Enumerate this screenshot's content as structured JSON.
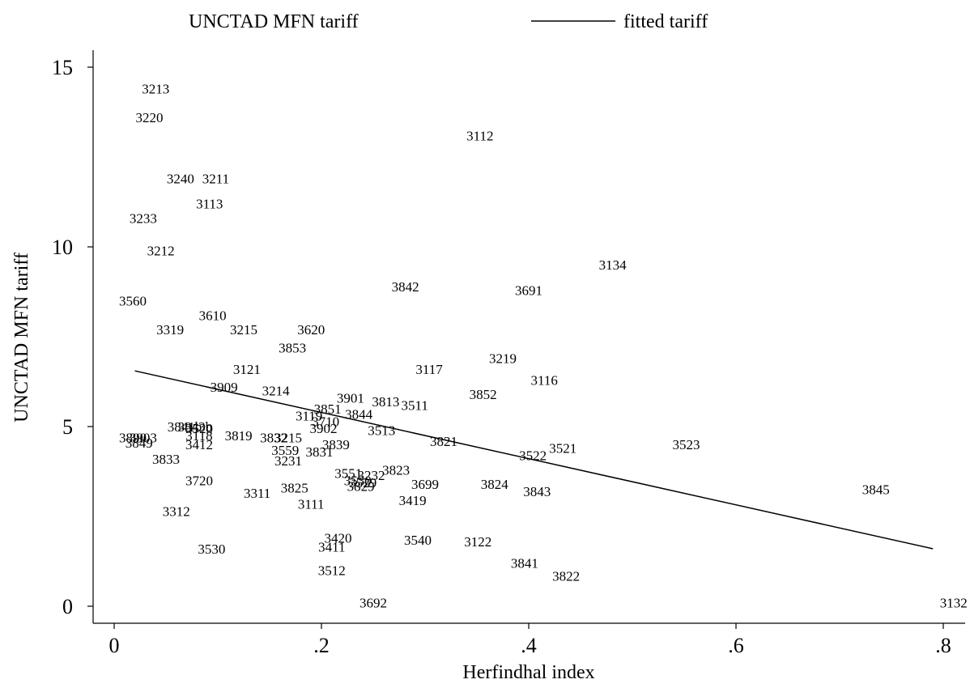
{
  "chart_data": {
    "type": "scatter",
    "xlabel": "Herfindhal index",
    "ylabel": "UNCTAD MFN tariff",
    "xlim": [
      0,
      0.82
    ],
    "ylim": [
      -0.5,
      15.5
    ],
    "xticks": [
      0,
      0.2,
      0.4,
      0.6,
      0.8
    ],
    "xtick_labels": [
      "0",
      ".2",
      ".4",
      ".6",
      ".8"
    ],
    "yticks": [
      0,
      5,
      10,
      15
    ],
    "ytick_labels": [
      "0",
      "5",
      "10",
      "15"
    ],
    "grid": false,
    "legend_position": "top",
    "series": [
      {
        "name": "UNCTAD MFN tariff",
        "kind": "labeled-points",
        "points": [
          {
            "label": "3213",
            "x": 0.04,
            "y": 14.4
          },
          {
            "label": "3220",
            "x": 0.034,
            "y": 13.6
          },
          {
            "label": "3112",
            "x": 0.353,
            "y": 13.1
          },
          {
            "label": "3240",
            "x": 0.064,
            "y": 11.9
          },
          {
            "label": "3211",
            "x": 0.098,
            "y": 11.9
          },
          {
            "label": "3113",
            "x": 0.092,
            "y": 11.2
          },
          {
            "label": "3233",
            "x": 0.028,
            "y": 10.8
          },
          {
            "label": "3212",
            "x": 0.045,
            "y": 9.9
          },
          {
            "label": "3134",
            "x": 0.481,
            "y": 9.5
          },
          {
            "label": "3842",
            "x": 0.281,
            "y": 8.9
          },
          {
            "label": "3691",
            "x": 0.4,
            "y": 8.8
          },
          {
            "label": "3560",
            "x": 0.018,
            "y": 8.5
          },
          {
            "label": "3610",
            "x": 0.095,
            "y": 8.1
          },
          {
            "label": "3319",
            "x": 0.054,
            "y": 7.7
          },
          {
            "label": "3215",
            "x": 0.125,
            "y": 7.7
          },
          {
            "label": "3620",
            "x": 0.19,
            "y": 7.7
          },
          {
            "label": "3853",
            "x": 0.172,
            "y": 7.2
          },
          {
            "label": "3219",
            "x": 0.375,
            "y": 6.9
          },
          {
            "label": "3121",
            "x": 0.128,
            "y": 6.6
          },
          {
            "label": "3117",
            "x": 0.304,
            "y": 6.6
          },
          {
            "label": "3116",
            "x": 0.415,
            "y": 6.3
          },
          {
            "label": "3909",
            "x": 0.106,
            "y": 6.1
          },
          {
            "label": "3214",
            "x": 0.156,
            "y": 6.0
          },
          {
            "label": "3852",
            "x": 0.356,
            "y": 5.9
          },
          {
            "label": "3901",
            "x": 0.228,
            "y": 5.8
          },
          {
            "label": "3813",
            "x": 0.262,
            "y": 5.7
          },
          {
            "label": "3511",
            "x": 0.29,
            "y": 5.6
          },
          {
            "label": "3851",
            "x": 0.206,
            "y": 5.5
          },
          {
            "label": "3844",
            "x": 0.236,
            "y": 5.35
          },
          {
            "label": "3119",
            "x": 0.188,
            "y": 5.3
          },
          {
            "label": "3710",
            "x": 0.204,
            "y": 5.15
          },
          {
            "label": "3841b",
            "x": 0.068,
            "y": 5.0
          },
          {
            "label": "3843b",
            "x": 0.078,
            "y": 5.0
          },
          {
            "label": "3520",
            "x": 0.082,
            "y": 4.95
          },
          {
            "label": "3902",
            "x": 0.202,
            "y": 4.95
          },
          {
            "label": "3513",
            "x": 0.258,
            "y": 4.9
          },
          {
            "label": "3118",
            "x": 0.082,
            "y": 4.75
          },
          {
            "label": "3819",
            "x": 0.12,
            "y": 4.75
          },
          {
            "label": "3832",
            "x": 0.154,
            "y": 4.7
          },
          {
            "label": "3215",
            "x": 0.168,
            "y": 4.7
          },
          {
            "label": "3890",
            "x": 0.018,
            "y": 4.7
          },
          {
            "label": "3903",
            "x": 0.028,
            "y": 4.7
          },
          {
            "label": "3821",
            "x": 0.318,
            "y": 4.6
          },
          {
            "label": "3849",
            "x": 0.024,
            "y": 4.55
          },
          {
            "label": "3412",
            "x": 0.082,
            "y": 4.5
          },
          {
            "label": "3839",
            "x": 0.214,
            "y": 4.5
          },
          {
            "label": "3523",
            "x": 0.552,
            "y": 4.5
          },
          {
            "label": "3521",
            "x": 0.433,
            "y": 4.4
          },
          {
            "label": "3559",
            "x": 0.165,
            "y": 4.35
          },
          {
            "label": "3831",
            "x": 0.198,
            "y": 4.3
          },
          {
            "label": "3522",
            "x": 0.404,
            "y": 4.2
          },
          {
            "label": "3833",
            "x": 0.05,
            "y": 4.1
          },
          {
            "label": "3231",
            "x": 0.168,
            "y": 4.05
          },
          {
            "label": "3823",
            "x": 0.272,
            "y": 3.8
          },
          {
            "label": "3551",
            "x": 0.226,
            "y": 3.7
          },
          {
            "label": "3232",
            "x": 0.248,
            "y": 3.65
          },
          {
            "label": "3530",
            "x": 0.235,
            "y": 3.5
          },
          {
            "label": "3529",
            "x": 0.24,
            "y": 3.45
          },
          {
            "label": "3720",
            "x": 0.082,
            "y": 3.5
          },
          {
            "label": "3699",
            "x": 0.3,
            "y": 3.4
          },
          {
            "label": "3824",
            "x": 0.367,
            "y": 3.4
          },
          {
            "label": "3829",
            "x": 0.238,
            "y": 3.35
          },
          {
            "label": "3825",
            "x": 0.174,
            "y": 3.3
          },
          {
            "label": "3843",
            "x": 0.408,
            "y": 3.2
          },
          {
            "label": "3845",
            "x": 0.735,
            "y": 3.25
          },
          {
            "label": "3311",
            "x": 0.138,
            "y": 3.15
          },
          {
            "label": "3419",
            "x": 0.288,
            "y": 2.95
          },
          {
            "label": "3111",
            "x": 0.19,
            "y": 2.85
          },
          {
            "label": "3312",
            "x": 0.06,
            "y": 2.65
          },
          {
            "label": "3420",
            "x": 0.216,
            "y": 1.9
          },
          {
            "label": "3540",
            "x": 0.293,
            "y": 1.85
          },
          {
            "label": "3122",
            "x": 0.351,
            "y": 1.8
          },
          {
            "label": "3411",
            "x": 0.21,
            "y": 1.65
          },
          {
            "label": "3530",
            "x": 0.094,
            "y": 1.6
          },
          {
            "label": "3841",
            "x": 0.396,
            "y": 1.2
          },
          {
            "label": "3512",
            "x": 0.21,
            "y": 1.0
          },
          {
            "label": "3822",
            "x": 0.436,
            "y": 0.85
          },
          {
            "label": "3692",
            "x": 0.25,
            "y": 0.1
          },
          {
            "label": "3132",
            "x": 0.81,
            "y": 0.1
          }
        ]
      },
      {
        "name": "fitted tariff",
        "kind": "line",
        "x": [
          0.02,
          0.79
        ],
        "y": [
          6.55,
          1.6
        ]
      }
    ]
  }
}
